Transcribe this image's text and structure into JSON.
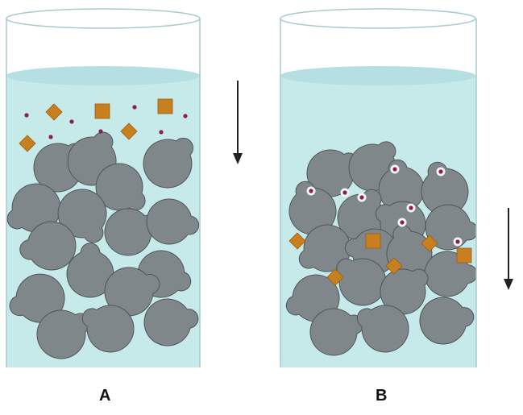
{
  "panels": [
    {
      "label": "A",
      "arrow_icon": "down-arrow-icon"
    },
    {
      "label": "B",
      "arrow_icon": "down-arrow-icon"
    }
  ],
  "colors": {
    "liquid": "#c6e9ea",
    "liquid_surface": "#b5dfe2",
    "glass_outline": "#a7c9cc",
    "bead_fill": "#7f878b",
    "bead_stroke": "#4e565a",
    "large_molecule": "#c87f1f",
    "small_molecule": "#8c1f4a",
    "arrow": "#222222"
  }
}
